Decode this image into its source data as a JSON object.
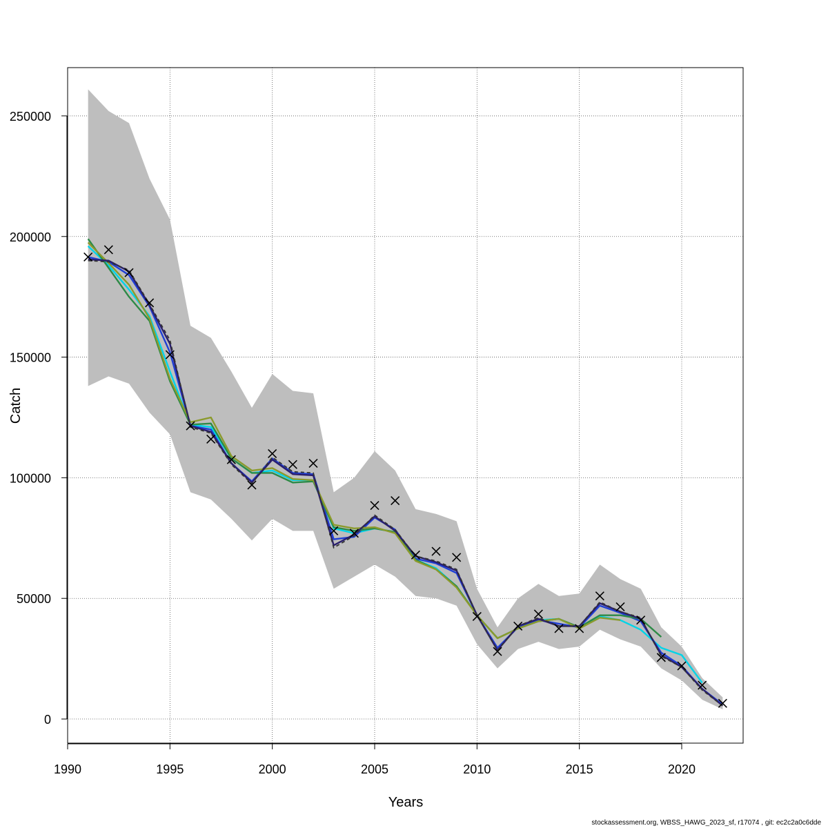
{
  "chart_data": {
    "type": "line",
    "xlabel": "Years",
    "ylabel": "Catch",
    "xlim": [
      1990,
      2023
    ],
    "ylim": [
      -10000,
      270000
    ],
    "x_ticks": [
      1990,
      1995,
      2000,
      2005,
      2010,
      2015,
      2020
    ],
    "y_ticks": [
      0,
      50000,
      100000,
      150000,
      200000,
      250000
    ],
    "grid": true,
    "legend": "none",
    "confidence_band": {
      "x": [
        1991,
        1992,
        1993,
        1994,
        1995,
        1996,
        1997,
        1998,
        1999,
        2000,
        2001,
        2002,
        2003,
        2004,
        2005,
        2006,
        2007,
        2008,
        2009,
        2010,
        2011,
        2012,
        2013,
        2014,
        2015,
        2016,
        2017,
        2018,
        2019,
        2020,
        2021,
        2022
      ],
      "lower": [
        138000,
        142000,
        139000,
        127000,
        118000,
        94000,
        91000,
        83000,
        74000,
        83000,
        78000,
        78000,
        54000,
        59000,
        64000,
        59000,
        51000,
        50000,
        47000,
        31000,
        21000,
        29000,
        32000,
        29000,
        30000,
        37000,
        33000,
        30000,
        21000,
        16000,
        8000,
        4000
      ],
      "upper": [
        261000,
        252000,
        247000,
        224000,
        207000,
        163000,
        158000,
        144000,
        129000,
        143000,
        136000,
        135000,
        94000,
        100000,
        111000,
        103000,
        87000,
        85000,
        82000,
        54000,
        38000,
        50000,
        56000,
        51000,
        52000,
        64000,
        58000,
        54000,
        38000,
        30000,
        17000,
        9000
      ],
      "color": "#bebebe"
    },
    "observed": {
      "name": "",
      "marker": "x",
      "x": [
        1991,
        1992,
        1993,
        1994,
        1995,
        1996,
        1997,
        1998,
        1999,
        2000,
        2001,
        2002,
        2003,
        2004,
        2005,
        2006,
        2007,
        2008,
        2009,
        2010,
        2011,
        2012,
        2013,
        2014,
        2015,
        2016,
        2017,
        2018,
        2019,
        2020,
        2021,
        2022
      ],
      "values": [
        191500,
        194500,
        185000,
        172500,
        151000,
        121500,
        116000,
        107500,
        97000,
        110000,
        105500,
        106000,
        78000,
        77000,
        88500,
        90500,
        68000,
        69500,
        67000,
        42500,
        28000,
        38500,
        43500,
        37500,
        37500,
        51000,
        46500,
        41000,
        25500,
        22000,
        14000,
        6500
      ]
    },
    "series": [
      {
        "name": "",
        "color": "#00d4e8",
        "x": [
          1991,
          1992,
          1993,
          1994,
          1995,
          1996,
          1997,
          1998,
          1999,
          2000,
          2001,
          2002,
          2003,
          2004,
          2005,
          2006,
          2007,
          2008,
          2009,
          2010,
          2011,
          2012,
          2013,
          2014,
          2015,
          2016,
          2017,
          2018,
          2019,
          2020,
          2021
        ],
        "values": [
          196000,
          188000,
          178000,
          167000,
          144000,
          122000,
          121000,
          108000,
          102000,
          103000,
          99000,
          99000,
          79000,
          77000,
          79000,
          77500,
          66000,
          62500,
          55000,
          43000,
          33500,
          37500,
          41000,
          41500,
          37500,
          42500,
          41000,
          37000,
          29500,
          26500,
          15000
        ]
      },
      {
        "name": "",
        "color": "#1f3fd6",
        "x": [
          1991,
          1992,
          1993,
          1994,
          1995,
          1996,
          1997,
          1998,
          1999,
          2000,
          2001,
          2002,
          2003,
          2004,
          2005,
          2006,
          2007,
          2008,
          2009,
          2010,
          2011,
          2012,
          2013,
          2014,
          2015,
          2016,
          2017,
          2018,
          2019,
          2020,
          2021,
          2022
        ],
        "values": [
          191500,
          189500,
          184000,
          171000,
          152000,
          121500,
          120000,
          106000,
          98500,
          108000,
          102000,
          101500,
          74500,
          75500,
          83500,
          78500,
          66500,
          64500,
          60500,
          43000,
          29500,
          38000,
          41000,
          39500,
          38000,
          47000,
          44000,
          40500,
          27500,
          22000,
          12500,
          6000
        ]
      },
      {
        "name": "",
        "color": "#2d8a46",
        "x": [
          1991,
          1992,
          1993,
          1994,
          1995,
          1996,
          1997,
          1998,
          1999,
          2000,
          2001,
          2002,
          2003,
          2004,
          2005,
          2006,
          2007,
          2008,
          2009,
          2010,
          2011,
          2012,
          2013,
          2014,
          2015,
          2016,
          2017,
          2018,
          2019
        ],
        "values": [
          199000,
          187000,
          175000,
          165000,
          140000,
          122000,
          122500,
          108000,
          102000,
          102000,
          98000,
          98500,
          79500,
          78000,
          79000,
          77500,
          66000,
          62000,
          55000,
          43000,
          33500,
          37500,
          40500,
          41500,
          38000,
          43000,
          43000,
          41500,
          34000
        ]
      },
      {
        "name": "",
        "color": "#8b9a2c",
        "x": [
          1991,
          1992,
          1993,
          1994,
          1995,
          1996,
          1997,
          1998,
          1999,
          2000,
          2001,
          2002,
          2003,
          2004,
          2005,
          2006,
          2007,
          2008,
          2009,
          2010,
          2011,
          2012,
          2013,
          2014,
          2015,
          2016,
          2017
        ],
        "values": [
          197500,
          189000,
          180000,
          166000,
          141000,
          123000,
          125000,
          109000,
          103000,
          104000,
          99500,
          99000,
          80500,
          79000,
          79500,
          77000,
          65500,
          62000,
          54500,
          43000,
          33500,
          37500,
          40500,
          41500,
          37500,
          42000,
          41000
        ]
      },
      {
        "name": "",
        "color": "#2a1f6e",
        "x": [
          1991,
          1992,
          1993,
          1994,
          1995,
          1996,
          1997,
          1998,
          1999,
          2000,
          2001,
          2002,
          2003,
          2004,
          2005,
          2006,
          2007,
          2008,
          2009,
          2010,
          2011,
          2012,
          2013,
          2014,
          2015,
          2016,
          2017,
          2018,
          2019,
          2020,
          2021,
          2022
        ],
        "values": [
          190500,
          190000,
          185500,
          171500,
          155500,
          121500,
          119000,
          106000,
          98000,
          107500,
          101500,
          101000,
          72000,
          76500,
          84000,
          78000,
          67500,
          65000,
          61500,
          43000,
          28500,
          38500,
          41500,
          38500,
          38500,
          48000,
          44500,
          41500,
          26500,
          21500,
          12500,
          5500
        ]
      }
    ],
    "median_dashed": {
      "name": "",
      "color": "#333333",
      "x": [
        1991,
        1992,
        1993,
        1994,
        1995,
        1996,
        1997,
        1998,
        1999,
        2000,
        2001,
        2002,
        2003,
        2004,
        2005,
        2006,
        2007,
        2008,
        2009,
        2010,
        2011,
        2012,
        2013,
        2014,
        2015,
        2016,
        2017,
        2018,
        2019,
        2020,
        2021,
        2022
      ],
      "values": [
        190000,
        189500,
        186000,
        172000,
        157000,
        121000,
        118500,
        105500,
        97500,
        108500,
        102500,
        102000,
        71000,
        76000,
        84500,
        78500,
        67500,
        65500,
        62000,
        43000,
        28500,
        38500,
        42000,
        38500,
        38500,
        48500,
        44500,
        42000,
        26000,
        21500,
        12000,
        5500
      ]
    }
  },
  "footer": {
    "text": "stockassessment.org, WBSS_HAWG_2023_sf, r17074 , git: ec2c2a0c6dde"
  }
}
